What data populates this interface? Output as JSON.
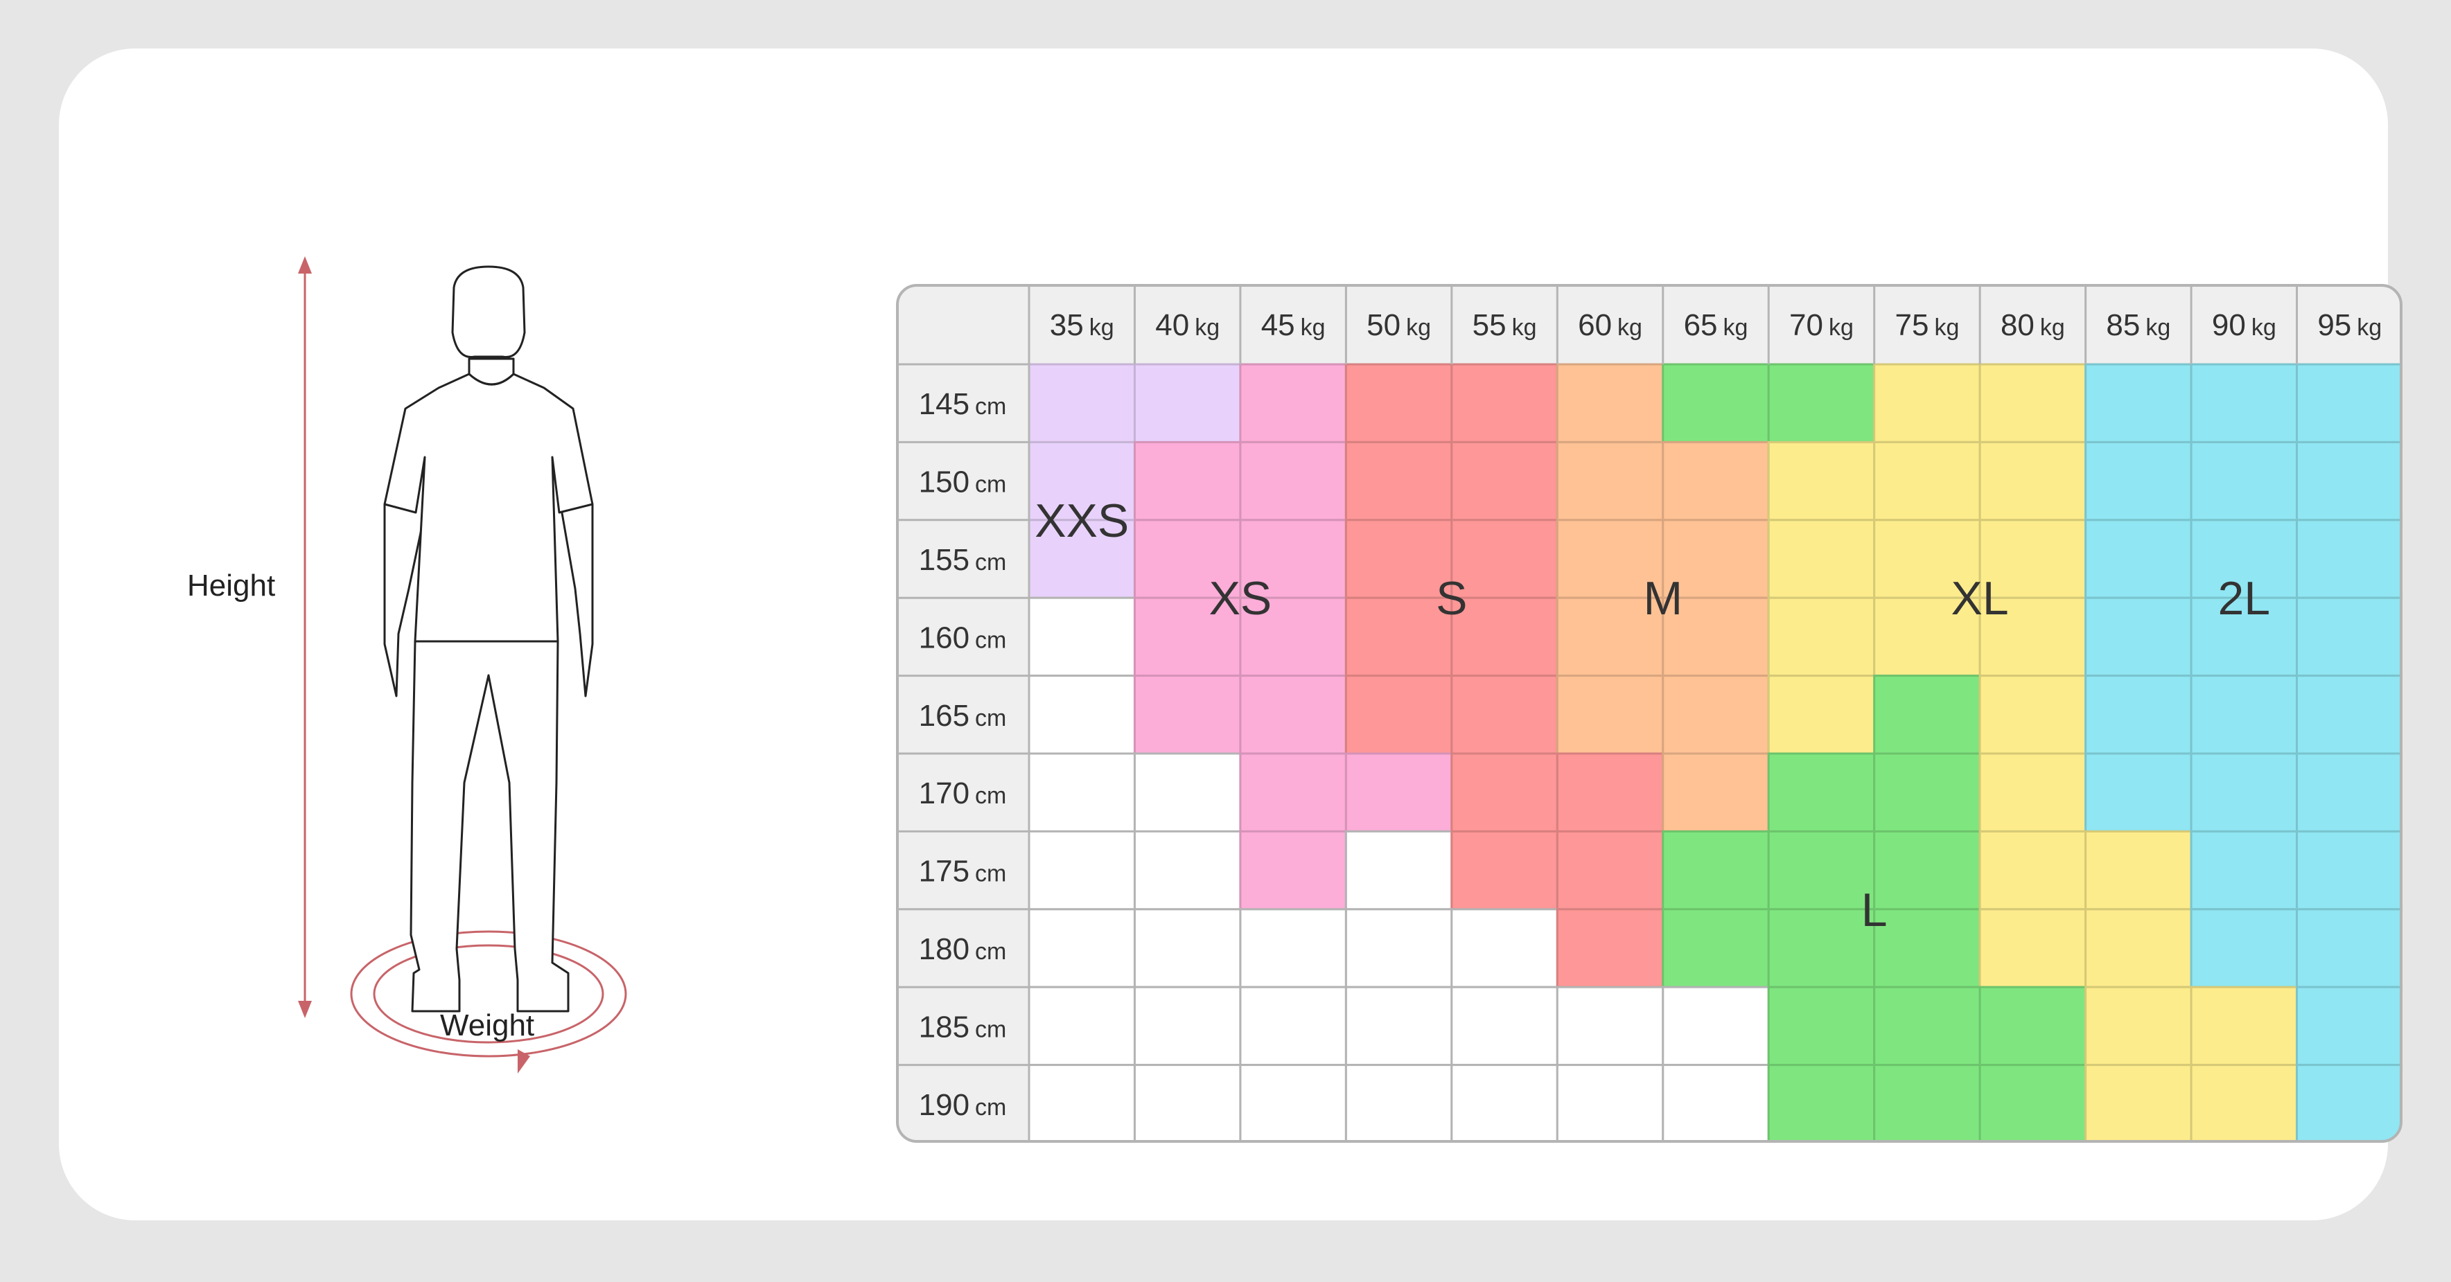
{
  "figure": {
    "height_label": "Height",
    "weight_label": "Weight"
  },
  "chart_data": {
    "type": "table",
    "title": "",
    "weights": [
      "35",
      "40",
      "45",
      "50",
      "55",
      "60",
      "65",
      "70",
      "75",
      "80",
      "85",
      "90",
      "95"
    ],
    "weight_unit": "kg",
    "heights": [
      "145",
      "150",
      "155",
      "160",
      "165",
      "170",
      "175",
      "180",
      "185",
      "190"
    ],
    "height_unit": "cm",
    "sizes": {
      "XXS": {
        "label": "XXS",
        "color": "#e8d2fb"
      },
      "XS": {
        "label": "XS",
        "color": "#fcadd8"
      },
      "S": {
        "label": "S",
        "color": "#fe9797"
      },
      "M": {
        "label": "M",
        "color": "#fec295"
      },
      "L": {
        "label": "L",
        "color": "#7fe67f"
      },
      "XL": {
        "label": "XL",
        "color": "#fcec8c"
      },
      "2L": {
        "label": "2L",
        "color": "#90e6f2"
      }
    },
    "grid": [
      [
        "XXS",
        "XXS",
        "XS",
        "S",
        "S",
        "M",
        "L",
        "L",
        "XL",
        "XL",
        "2L",
        "2L",
        "2L"
      ],
      [
        "XXS",
        "XS",
        "XS",
        "S",
        "S",
        "M",
        "M",
        "XL",
        "XL",
        "XL",
        "2L",
        "2L",
        "2L"
      ],
      [
        "XXS",
        "XS",
        "XS",
        "S",
        "S",
        "M",
        "M",
        "XL",
        "XL",
        "XL",
        "2L",
        "2L",
        "2L"
      ],
      [
        "",
        "XS",
        "XS",
        "S",
        "S",
        "M",
        "M",
        "XL",
        "XL",
        "XL",
        "2L",
        "2L",
        "2L"
      ],
      [
        "",
        "XS",
        "XS",
        "S",
        "S",
        "M",
        "M",
        "XL",
        "L",
        "XL",
        "2L",
        "2L",
        "2L"
      ],
      [
        "",
        "",
        "XS",
        "XS",
        "S",
        "S",
        "M",
        "L",
        "L",
        "XL",
        "2L",
        "2L",
        "2L"
      ],
      [
        "",
        "",
        "XS",
        "",
        "S",
        "S",
        "L",
        "L",
        "L",
        "XL",
        "XL",
        "2L",
        "2L"
      ],
      [
        "",
        "",
        "",
        "",
        "",
        "S",
        "L",
        "L",
        "L",
        "XL",
        "XL",
        "2L",
        "2L"
      ],
      [
        "",
        "",
        "",
        "",
        "",
        "",
        "",
        "L",
        "L",
        "L",
        "XL",
        "XL",
        "2L"
      ],
      [
        "",
        "",
        "",
        "",
        "",
        "",
        "",
        "L",
        "L",
        "L",
        "XL",
        "XL",
        "2L"
      ]
    ],
    "header_color": "#efefef",
    "line_color": "#b4b4b4"
  }
}
